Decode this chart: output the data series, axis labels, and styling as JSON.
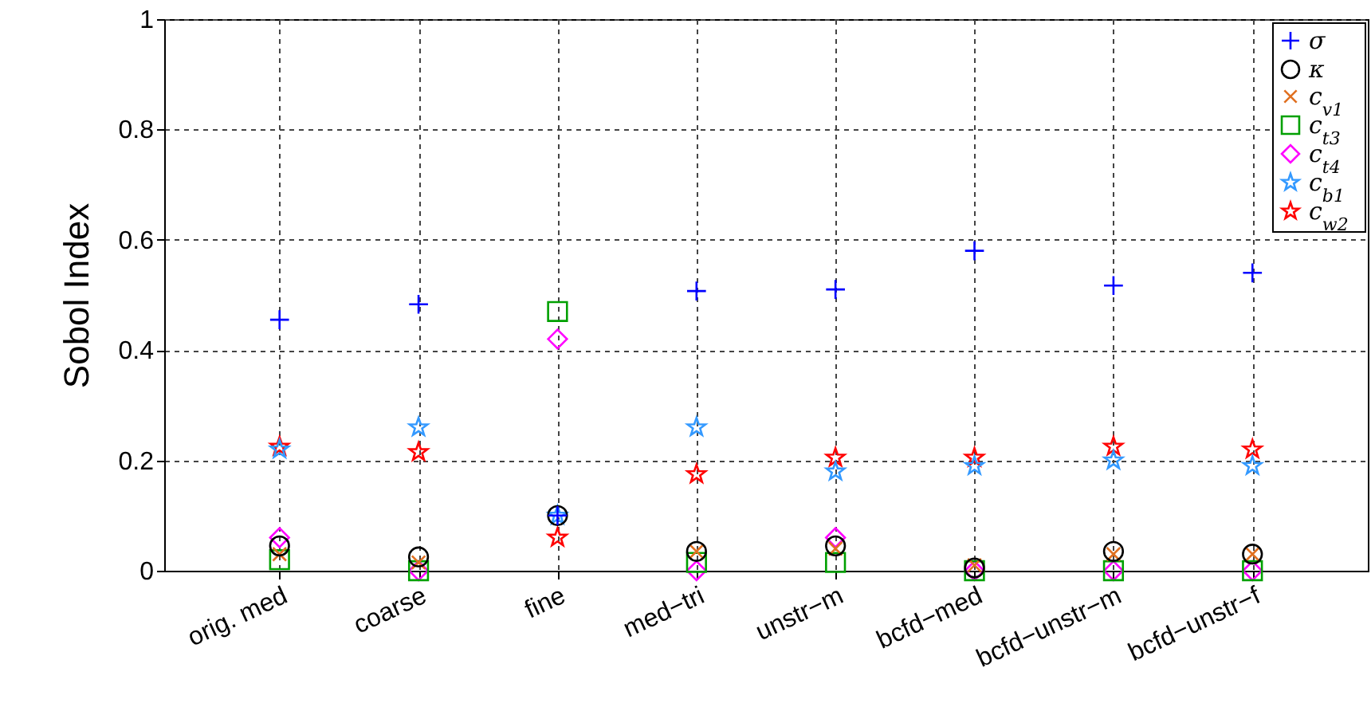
{
  "chart_data": {
    "type": "scatter",
    "ylabel": "Sobol Index",
    "categories": [
      "orig. med",
      "coarse",
      "fine",
      "med−tri",
      "unstr−m",
      "bcfd−med",
      "bcfd−unstr−m",
      "bcfd−unstr−f"
    ],
    "series": [
      {
        "name": "σ",
        "color": "#0000ff",
        "marker": "cross",
        "values": [
          0.455,
          0.483,
          0.1,
          0.507,
          0.51,
          0.58,
          0.517,
          0.54
        ]
      },
      {
        "name": "κ",
        "color": "#000000",
        "marker": "circle",
        "values": [
          0.045,
          0.025,
          0.1,
          0.035,
          0.045,
          0.005,
          0.035,
          0.03
        ]
      },
      {
        "name": "c$_{v1}$",
        "color": "#e07020",
        "marker": "x",
        "values": [
          0.03,
          0.015,
          null,
          0.035,
          0.04,
          0.01,
          0.03,
          0.03
        ]
      },
      {
        "name": "c$_{t3}$",
        "color": "#00a000",
        "marker": "square",
        "values": [
          0.02,
          0.0,
          0.47,
          0.015,
          0.015,
          0.0,
          0.0,
          0.0
        ]
      },
      {
        "name": "c$_{t4}$",
        "color": "#ff00ff",
        "marker": "diamond",
        "values": [
          0.06,
          0.0,
          0.42,
          0.0,
          0.06,
          0.0,
          0.0,
          0.0
        ]
      },
      {
        "name": "c$_{b1}$",
        "color": "#3399ff",
        "marker": "star",
        "values": [
          0.22,
          0.26,
          0.1,
          0.26,
          0.18,
          0.19,
          0.2,
          0.19
        ]
      },
      {
        "name": "c$_{w2}$",
        "color": "#ff0000",
        "marker": "star",
        "values": [
          0.225,
          0.215,
          0.06,
          0.175,
          0.205,
          0.205,
          0.225,
          0.22
        ]
      }
    ],
    "ylim": [
      0,
      1
    ],
    "yticks": [
      0,
      0.2,
      0.4,
      0.6,
      0.8,
      1
    ],
    "grid": true,
    "legend": "top right"
  }
}
